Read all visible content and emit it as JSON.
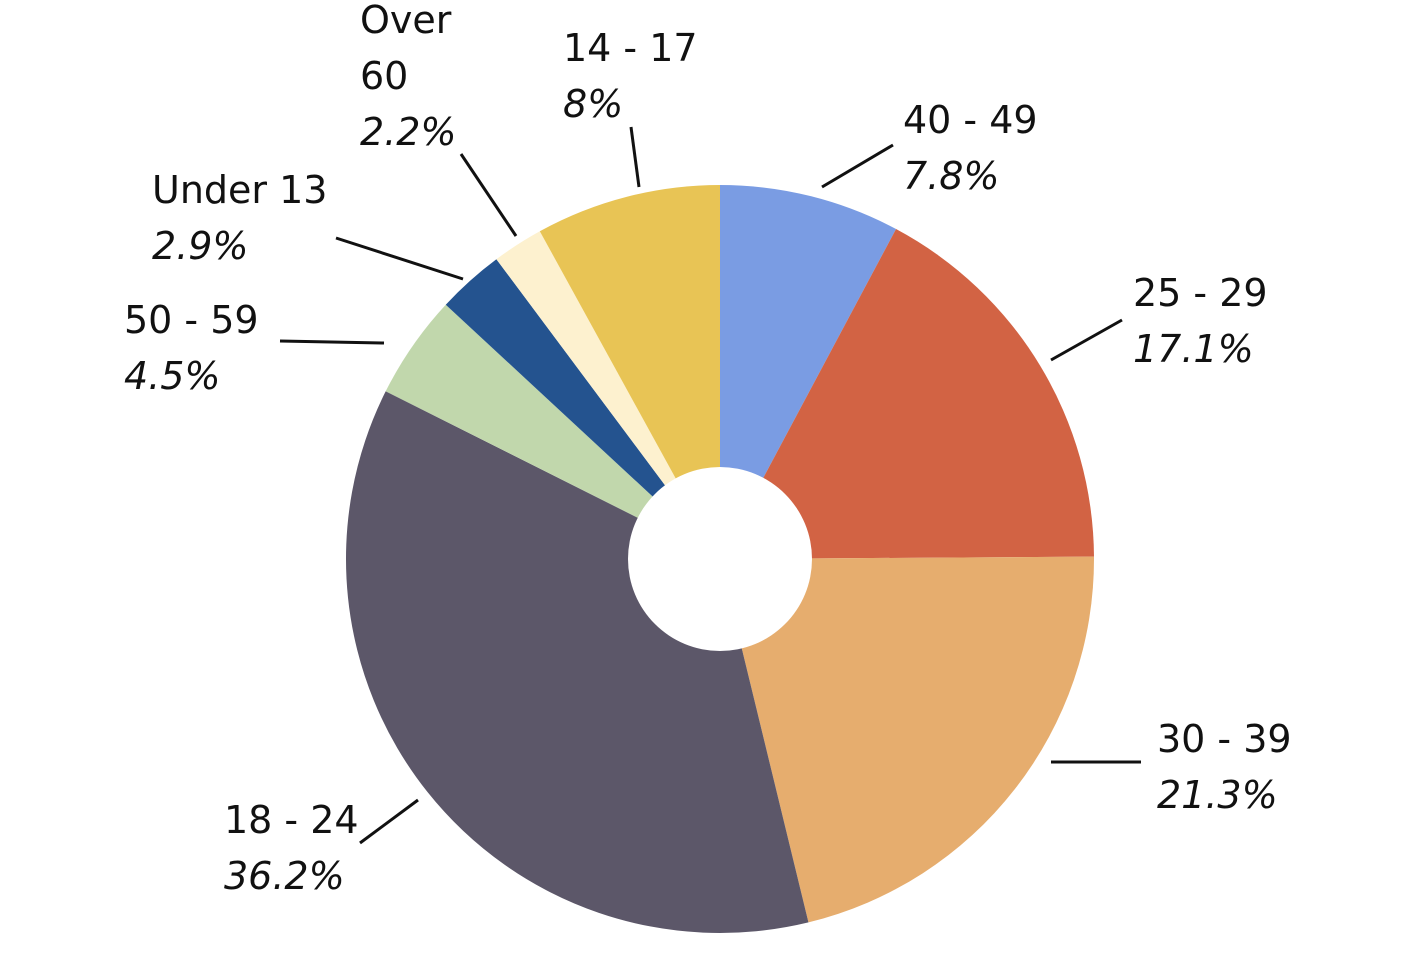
{
  "chart_data": {
    "type": "pie",
    "title": "",
    "donut": true,
    "start_angle_deg": 0,
    "direction": "clockwise",
    "slices": [
      {
        "label": "40 - 49",
        "name_lines": [
          "40 - 49"
        ],
        "percent_label": "7.8%",
        "value": 7.8,
        "color": "#7A9CE3"
      },
      {
        "label": "25 - 29",
        "name_lines": [
          "25 - 29"
        ],
        "percent_label": "17.1%",
        "value": 17.1,
        "color": "#D26344"
      },
      {
        "label": "30 - 39",
        "name_lines": [
          "30 - 39"
        ],
        "percent_label": "21.3%",
        "value": 21.3,
        "color": "#E6AD6E"
      },
      {
        "label": "18 - 24",
        "name_lines": [
          "18 - 24"
        ],
        "percent_label": "36.2%",
        "value": 36.2,
        "color": "#5C5769"
      },
      {
        "label": "50 - 59",
        "name_lines": [
          "50 - 59"
        ],
        "percent_label": "4.5%",
        "value": 4.5,
        "color": "#C1D7AC"
      },
      {
        "label": "Under 13",
        "name_lines": [
          "Under 13"
        ],
        "percent_label": "2.9%",
        "value": 2.9,
        "color": "#24538F"
      },
      {
        "label": "Over 60",
        "name_lines": [
          "Over",
          "60"
        ],
        "percent_label": "2.2%",
        "value": 2.2,
        "color": "#FDF1CF"
      },
      {
        "label": "14 - 17",
        "name_lines": [
          "14 - 17"
        ],
        "percent_label": "8%",
        "value": 8,
        "color": "#E8C455"
      }
    ]
  }
}
